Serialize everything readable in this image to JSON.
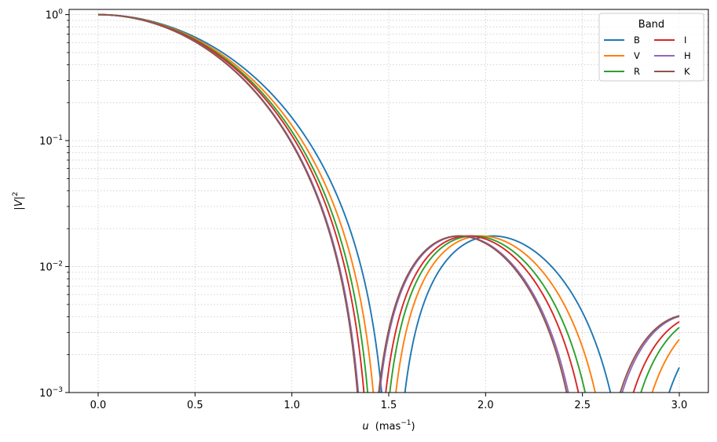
{
  "chart_data": {
    "type": "line",
    "xlabel_var": "u",
    "xlabel_unit": "(mas",
    "xlabel_exp": "−1",
    "xlabel_close": ")",
    "ylabel_var": "|V|",
    "ylabel_exp": "2",
    "xlim": [
      -0.15,
      3.15
    ],
    "ylim": [
      0.001,
      1.1
    ],
    "yscale": "log",
    "grid": true,
    "x_ticks": [
      "0.0",
      "0.5",
      "1.0",
      "1.5",
      "2.0",
      "2.5",
      "3.0"
    ],
    "x_tick_values": [
      0.0,
      0.5,
      1.0,
      1.5,
      2.0,
      2.5,
      3.0
    ],
    "y_ticks": [
      {
        "base": "10",
        "exp": "−3",
        "value": 0.001
      },
      {
        "base": "10",
        "exp": "−2",
        "value": 0.01
      },
      {
        "base": "10",
        "exp": "−1",
        "value": 0.1
      },
      {
        "base": "10",
        "exp": "0",
        "value": 1
      }
    ],
    "legend": {
      "title": "Band",
      "position": "top-right",
      "columns": 2
    },
    "series": [
      {
        "name": "B",
        "color": "#1f77b4",
        "first_null_u": 1.52
      },
      {
        "name": "V",
        "color": "#ff7f0e",
        "first_null_u": 1.475
      },
      {
        "name": "R",
        "color": "#2ca02c",
        "first_null_u": 1.445
      },
      {
        "name": "I",
        "color": "#d62728",
        "first_null_u": 1.425
      },
      {
        "name": "H",
        "color": "#9467bd",
        "first_null_u": 1.395
      },
      {
        "name": "K",
        "color": "#8c564b",
        "first_null_u": 1.39
      }
    ]
  }
}
